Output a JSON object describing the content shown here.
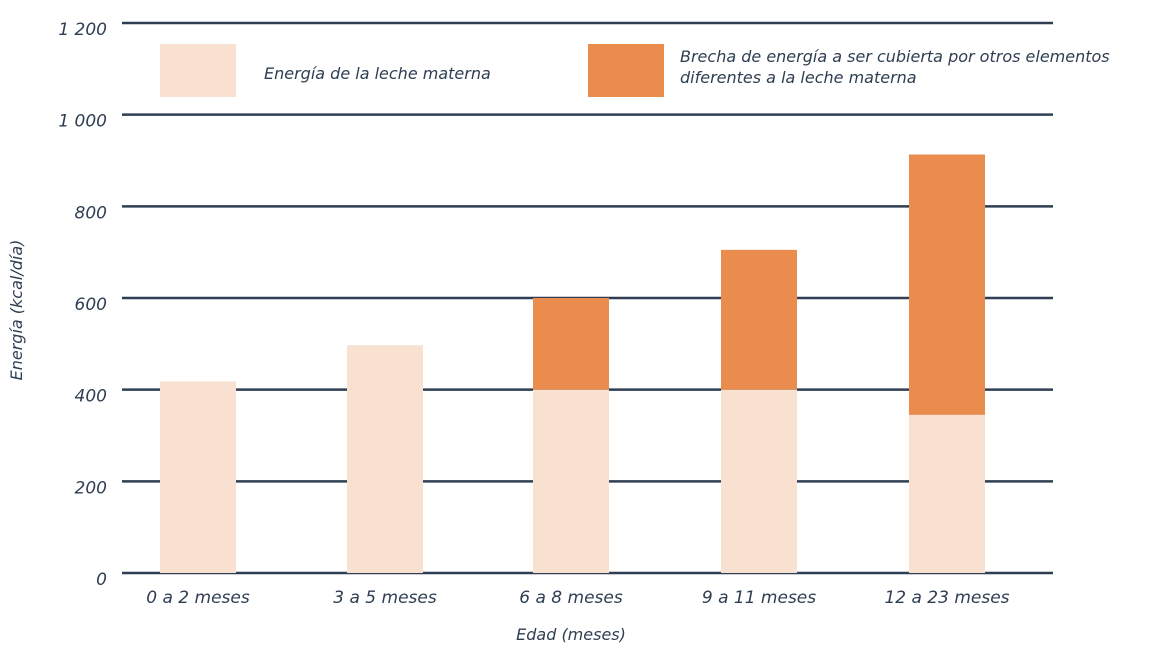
{
  "chart_data": {
    "type": "bar",
    "stacked": true,
    "categories": [
      "0 a 2 meses",
      "3 a 5 meses",
      "6 a 8 meses",
      "9 a 11 meses",
      "12 a 23 meses"
    ],
    "series": [
      {
        "name": "Energía de la leche materna",
        "color": "#f9e1d2",
        "values": [
          418,
          497,
          400,
          400,
          345
        ]
      },
      {
        "name": "Brecha de energía a ser cubierta por otros elementos diferentes a la leche materna",
        "name_lines": [
          "Brecha de energía a ser cubierta por otros elementos",
          "diferentes a la leche materna"
        ],
        "color": "#e98c4d",
        "values": [
          0,
          0,
          200,
          305,
          568
        ]
      }
    ],
    "xlabel": "Edad (meses)",
    "ylabel": "Energía (kcal/día)",
    "ylim": [
      0,
      1200
    ],
    "yticks": [
      {
        "value": 0,
        "label": "0"
      },
      {
        "value": 200,
        "label": "200"
      },
      {
        "value": 400,
        "label": "400"
      },
      {
        "value": 600,
        "label": "600"
      },
      {
        "value": 800,
        "label": "800"
      },
      {
        "value": 1000,
        "label": "1 000"
      },
      {
        "value": 1200,
        "label": "1 200"
      }
    ],
    "grid": true,
    "gridline_color": "#2f3e52",
    "legend_position": "top"
  }
}
